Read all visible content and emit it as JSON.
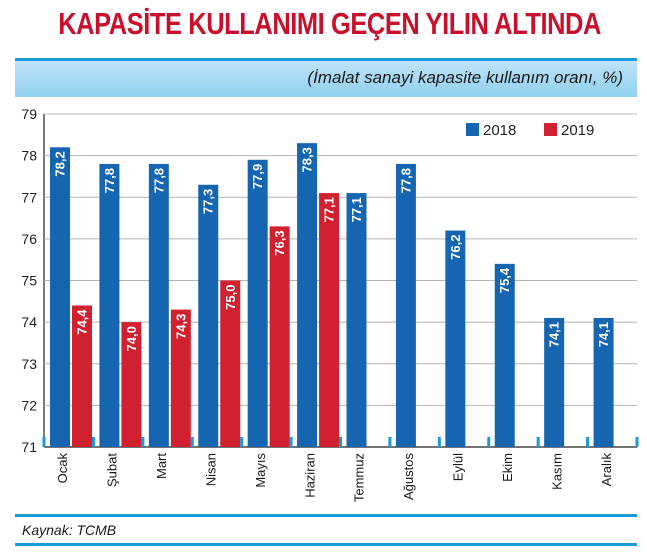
{
  "title": "KAPASİTE KULLANIMI GEÇEN YILIN ALTINDA",
  "subtitle": "(İmalat sanayi kapasite kullanım oranı, %)",
  "source": "Kaynak: TCMB",
  "colors": {
    "s2018": "#1565b0",
    "s2019": "#d1202f",
    "grid": "#b5b5b5",
    "accent": "#1a9ad6"
  },
  "chart_data": {
    "type": "bar",
    "categories": [
      "Ocak",
      "Şubat",
      "Mart",
      "Nisan",
      "Mayıs",
      "Haziran",
      "Temmuz",
      "Ağustos",
      "Eylül",
      "Ekim",
      "Kasım",
      "Aralık"
    ],
    "series": [
      {
        "name": "2018",
        "values": [
          78.2,
          77.8,
          77.8,
          77.3,
          77.9,
          78.3,
          77.1,
          77.8,
          76.2,
          75.4,
          74.1,
          74.1
        ],
        "labels": [
          "78,2",
          "77,8",
          "77,8",
          "77,3",
          "77,9",
          "78,3",
          "77,1",
          "77,8",
          "76,2",
          "75,4",
          "74,1",
          "74,1"
        ]
      },
      {
        "name": "2019",
        "values": [
          74.4,
          74.0,
          74.3,
          75.0,
          76.3,
          77.1,
          null,
          null,
          null,
          null,
          null,
          null
        ],
        "labels": [
          "74,4",
          "74,0",
          "74,3",
          "75,0",
          "76,3",
          "77,1",
          "",
          "",
          "",
          "",
          "",
          ""
        ]
      }
    ],
    "yticks": [
      71,
      72,
      73,
      74,
      75,
      76,
      77,
      78,
      79
    ],
    "ylim": [
      71,
      79
    ],
    "grid": true,
    "legend": "top-right"
  }
}
